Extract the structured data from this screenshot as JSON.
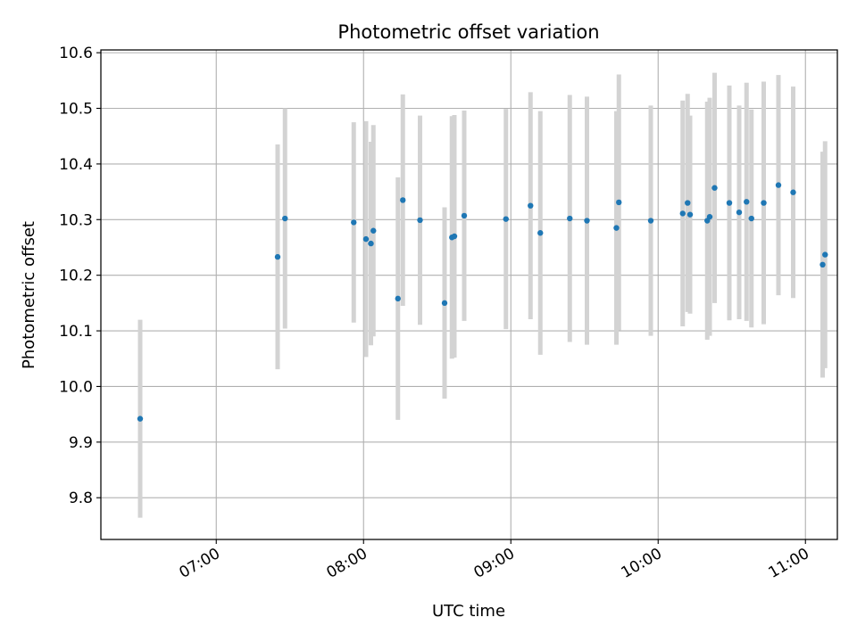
{
  "chart_data": {
    "type": "scatter",
    "title": "Photometric offset variation",
    "xlabel": "UTC time",
    "ylabel": "Photometric offset",
    "xlim": [
      "06:13",
      "11:13"
    ],
    "ylim": [
      9.725,
      10.605
    ],
    "grid": true,
    "x_ticks": [
      "07:00",
      "08:00",
      "09:00",
      "10:00",
      "11:00"
    ],
    "y_ticks": [
      "9.8",
      "9.9",
      "10.0",
      "10.1",
      "10.2",
      "10.3",
      "10.4",
      "10.5",
      "10.6"
    ],
    "errorbar_color": "#d3d3d3",
    "marker_color": "#1f77b4",
    "points": [
      {
        "time": "06:29",
        "y": 9.942,
        "err": 0.178
      },
      {
        "time": "07:25",
        "y": 10.233,
        "err": 0.202
      },
      {
        "time": "07:28",
        "y": 10.302,
        "err": 0.198
      },
      {
        "time": "07:56",
        "y": 10.295,
        "err": 0.18
      },
      {
        "time": "08:01",
        "y": 10.265,
        "err": 0.212
      },
      {
        "time": "08:03",
        "y": 10.257,
        "err": 0.183
      },
      {
        "time": "08:04",
        "y": 10.28,
        "err": 0.19
      },
      {
        "time": "08:14",
        "y": 10.158,
        "err": 0.218
      },
      {
        "time": "08:16",
        "y": 10.335,
        "err": 0.19
      },
      {
        "time": "08:23",
        "y": 10.299,
        "err": 0.188
      },
      {
        "time": "08:33",
        "y": 10.15,
        "err": 0.172
      },
      {
        "time": "08:36",
        "y": 10.268,
        "err": 0.218
      },
      {
        "time": "08:37",
        "y": 10.27,
        "err": 0.218
      },
      {
        "time": "08:41",
        "y": 10.307,
        "err": 0.189
      },
      {
        "time": "08:58",
        "y": 10.301,
        "err": 0.198
      },
      {
        "time": "09:08",
        "y": 10.325,
        "err": 0.204
      },
      {
        "time": "09:12",
        "y": 10.276,
        "err": 0.219
      },
      {
        "time": "09:24",
        "y": 10.302,
        "err": 0.222
      },
      {
        "time": "09:31",
        "y": 10.298,
        "err": 0.223
      },
      {
        "time": "09:43",
        "y": 10.285,
        "err": 0.21
      },
      {
        "time": "09:44",
        "y": 10.331,
        "err": 0.23
      },
      {
        "time": "09:57",
        "y": 10.298,
        "err": 0.207
      },
      {
        "time": "10:10",
        "y": 10.311,
        "err": 0.203
      },
      {
        "time": "10:12",
        "y": 10.33,
        "err": 0.196
      },
      {
        "time": "10:13",
        "y": 10.309,
        "err": 0.178
      },
      {
        "time": "10:20",
        "y": 10.298,
        "err": 0.214
      },
      {
        "time": "10:21",
        "y": 10.305,
        "err": 0.214
      },
      {
        "time": "10:23",
        "y": 10.357,
        "err": 0.207
      },
      {
        "time": "10:29",
        "y": 10.33,
        "err": 0.211
      },
      {
        "time": "10:33",
        "y": 10.313,
        "err": 0.192
      },
      {
        "time": "10:36",
        "y": 10.332,
        "err": 0.214
      },
      {
        "time": "10:38",
        "y": 10.302,
        "err": 0.196
      },
      {
        "time": "10:43",
        "y": 10.33,
        "err": 0.218
      },
      {
        "time": "10:49",
        "y": 10.362,
        "err": 0.198
      },
      {
        "time": "10:55",
        "y": 10.349,
        "err": 0.19
      },
      {
        "time": "11:07",
        "y": 10.219,
        "err": 0.203
      },
      {
        "time": "11:08",
        "y": 10.237,
        "err": 0.204
      }
    ]
  }
}
